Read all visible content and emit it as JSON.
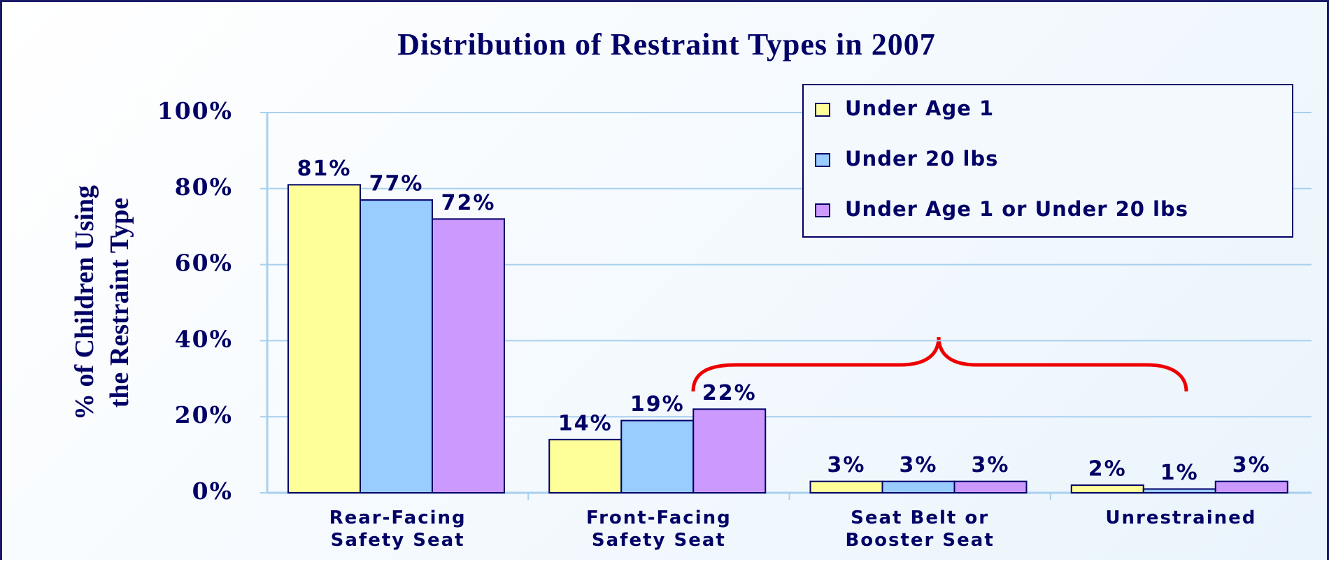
{
  "chart_data": {
    "type": "bar",
    "title": "Distribution of Restraint Types in 2007",
    "y_label": "% of Children Using\nthe Restraint Type",
    "categories": [
      "Rear-Facing\nSafety Seat",
      "Front-Facing\nSafety Seat",
      "Seat Belt or\nBooster Seat",
      "Unrestrained"
    ],
    "series": [
      {
        "name": "Under Age 1",
        "color": "#ffff99",
        "values": [
          81,
          14,
          3,
          2
        ],
        "value_labels": [
          "81%",
          "14%",
          "3%",
          "2%"
        ]
      },
      {
        "name": "Under 20 lbs",
        "color": "#99ccff",
        "values": [
          77,
          19,
          3,
          1
        ],
        "value_labels": [
          "77%",
          "19%",
          "3%",
          "1%"
        ]
      },
      {
        "name": "Under Age 1 or Under 20 lbs",
        "color": "#cc99ff",
        "values": [
          72,
          22,
          3,
          3
        ],
        "value_labels": [
          "72%",
          "22%",
          "3%",
          "3%"
        ]
      }
    ],
    "ylim": [
      0,
      100
    ],
    "yticks": [
      {
        "value": 0,
        "label": "0%"
      },
      {
        "value": 20,
        "label": "20%"
      },
      {
        "value": 40,
        "label": "40%"
      },
      {
        "value": 60,
        "label": "60%"
      },
      {
        "value": 80,
        "label": "80%"
      },
      {
        "value": 100,
        "label": "100%"
      }
    ],
    "grid": true,
    "legend": "top-right"
  }
}
